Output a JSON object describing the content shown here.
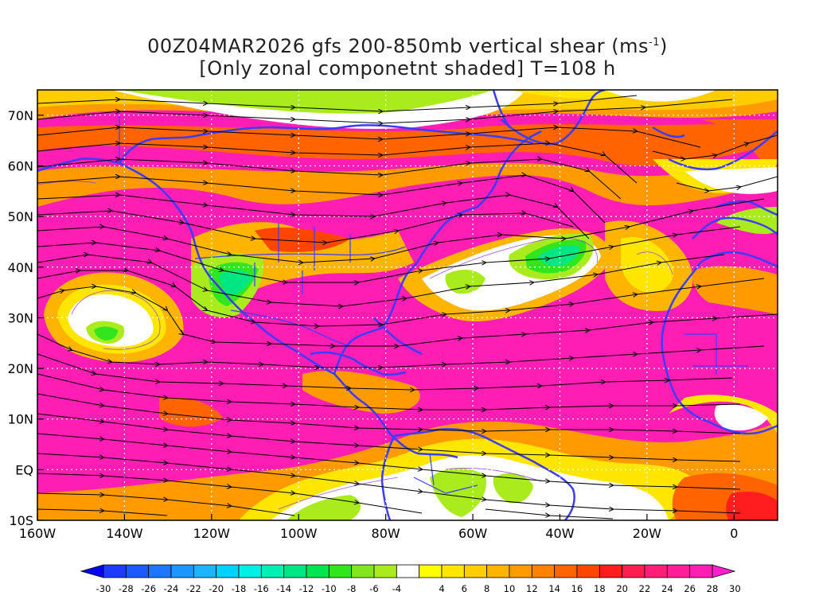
{
  "title": {
    "line1_prefix": "00Z04MAR2026 gfs 200-850mb vertical shear (ms",
    "line1_exponent": "-1",
    "line1_suffix": ")",
    "line2": "[Only zonal componetnt shaded] T=108 h"
  },
  "map": {
    "lon_range": [
      -160,
      10
    ],
    "lat_range": [
      -10,
      75
    ],
    "lat_ticks": [
      {
        "value": 70,
        "label": "70N"
      },
      {
        "value": 60,
        "label": "60N"
      },
      {
        "value": 50,
        "label": "50N"
      },
      {
        "value": 40,
        "label": "40N"
      },
      {
        "value": 30,
        "label": "30N"
      },
      {
        "value": 20,
        "label": "20N"
      },
      {
        "value": 10,
        "label": "10N"
      },
      {
        "value": 0,
        "label": "EQ"
      },
      {
        "value": -10,
        "label": "10S"
      }
    ],
    "lon_ticks": [
      {
        "value": -160,
        "label": "160W"
      },
      {
        "value": -140,
        "label": "140W"
      },
      {
        "value": -120,
        "label": "120W"
      },
      {
        "value": -100,
        "label": "100W"
      },
      {
        "value": -80,
        "label": "80W"
      },
      {
        "value": -60,
        "label": "60W"
      },
      {
        "value": -40,
        "label": "40W"
      },
      {
        "value": -20,
        "label": "20W"
      },
      {
        "value": 0,
        "label": "0"
      }
    ]
  },
  "colorbar": {
    "min": -30,
    "max": 30,
    "step": 2,
    "tick_labels": [
      "-30",
      "-28",
      "-26",
      "-24",
      "-22",
      "-20",
      "-18",
      "-16",
      "-14",
      "-12",
      "-10",
      "-8",
      "-6",
      "-4",
      "4",
      "6",
      "8",
      "10",
      "12",
      "14",
      "16",
      "18",
      "20",
      "22",
      "24",
      "26",
      "28",
      "30"
    ],
    "colors": [
      "#1e3cff",
      "#1e58ff",
      "#1e78ff",
      "#1e96ff",
      "#1eb4ff",
      "#00d2ff",
      "#00f0e6",
      "#00f0b4",
      "#00e682",
      "#00e650",
      "#32e61e",
      "#82e61e",
      "#aaeb1e",
      "#ffffff",
      "#ffff00",
      "#ffe600",
      "#ffcd00",
      "#ffb400",
      "#ff9b00",
      "#ff8200",
      "#ff6400",
      "#ff4600",
      "#ff1e1e",
      "#ff1e50",
      "#ff1e78",
      "#ff1e96",
      "#ff1eb4"
    ]
  }
}
